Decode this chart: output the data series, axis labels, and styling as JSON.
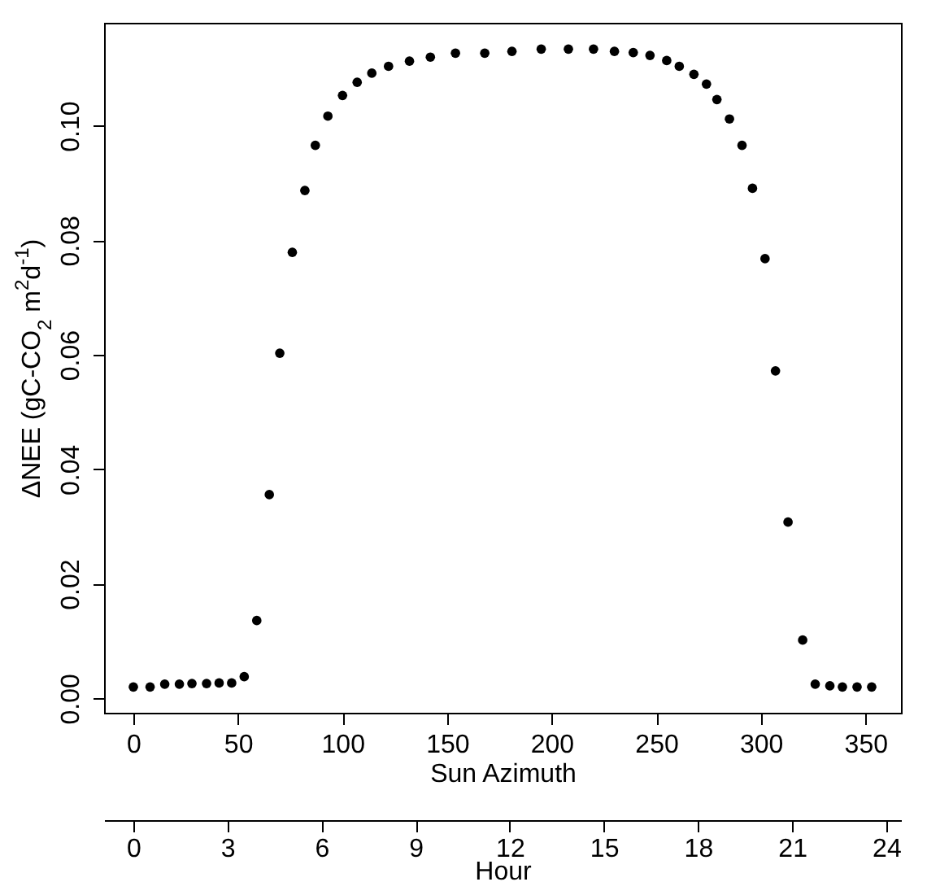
{
  "chart_data": {
    "type": "scatter",
    "xlabel": "Sun Azimuth",
    "ylabel": "ΔNEE (gC-CO$_{2}$ m$^{2}$d$^{-1}$)",
    "x2label": "Hour",
    "x": [
      0,
      8,
      15,
      22,
      28,
      35,
      41,
      47,
      53,
      59,
      65,
      70,
      76,
      82,
      87,
      93,
      100,
      107,
      114,
      122,
      132,
      142,
      154,
      168,
      181,
      195,
      208,
      220,
      230,
      239,
      247,
      255,
      261,
      268,
      274,
      279,
      285,
      291,
      296,
      302,
      307,
      313,
      320,
      326,
      333,
      339,
      346,
      353
    ],
    "series": [
      {
        "color": "#000000",
        "values": [
          0.002,
          0.002,
          0.0025,
          0.0025,
          0.0026,
          0.0026,
          0.0027,
          0.0027,
          0.0038,
          0.0136,
          0.0356,
          0.0603,
          0.0779,
          0.0887,
          0.0966,
          0.1017,
          0.1053,
          0.1076,
          0.1092,
          0.1104,
          0.1113,
          0.112,
          0.1127,
          0.1127,
          0.113,
          0.1134,
          0.1134,
          0.1134,
          0.113,
          0.1128,
          0.1123,
          0.1114,
          0.1104,
          0.109,
          0.1073,
          0.1046,
          0.1012,
          0.0966,
          0.0891,
          0.0768,
          0.0572,
          0.0308,
          0.0102,
          0.0025,
          0.0022,
          0.002,
          0.002,
          0.002
        ]
      }
    ],
    "xlim": [
      -14,
      367
    ],
    "xticks": [
      0,
      50,
      100,
      150,
      200,
      250,
      300,
      350
    ],
    "ylim": [
      -0.0025,
      0.118
    ],
    "yticks": [
      {
        "value": 0,
        "label": "0.00"
      },
      {
        "value": 0.02,
        "label": "0.02"
      },
      {
        "value": 0.04,
        "label": "0.04"
      },
      {
        "value": 0.06,
        "label": "0.06"
      },
      {
        "value": 0.08,
        "label": "0.08"
      },
      {
        "value": 0.1,
        "label": "0.10"
      }
    ],
    "x2lim": [
      -0.93,
      24.47
    ],
    "x2ticks": [
      0,
      3,
      6,
      9,
      12,
      15,
      18,
      21,
      24
    ],
    "marker": "circle",
    "grid": false,
    "legend": false
  }
}
